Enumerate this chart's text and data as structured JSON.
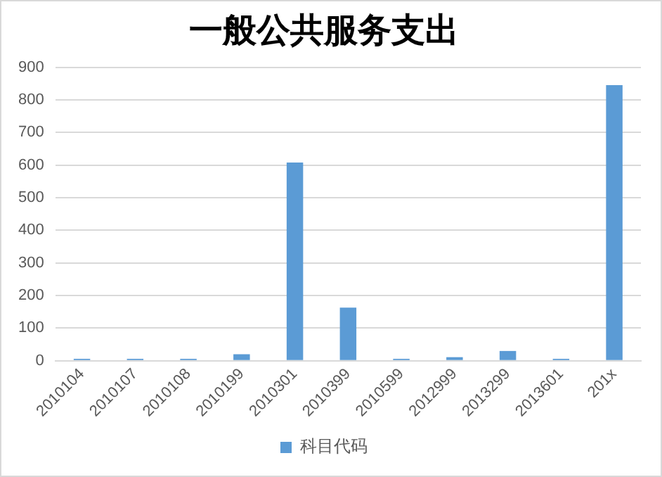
{
  "chart_data": {
    "type": "bar",
    "title": "一般公共服务支出",
    "categories": [
      "2010104",
      "2010107",
      "2010108",
      "2010199",
      "2010301",
      "2010399",
      "2010599",
      "2012999",
      "2013299",
      "2013601",
      "201x"
    ],
    "series": [
      {
        "name": "科目代码",
        "color": "#5b9bd5",
        "values": [
          6,
          6,
          6,
          20,
          608,
          163,
          6,
          11,
          30,
          6,
          845
        ]
      }
    ],
    "ylim": [
      0,
      900
    ],
    "yticks": [
      0,
      100,
      200,
      300,
      400,
      500,
      600,
      700,
      800,
      900
    ],
    "grid": "y",
    "legend": "bottom"
  }
}
